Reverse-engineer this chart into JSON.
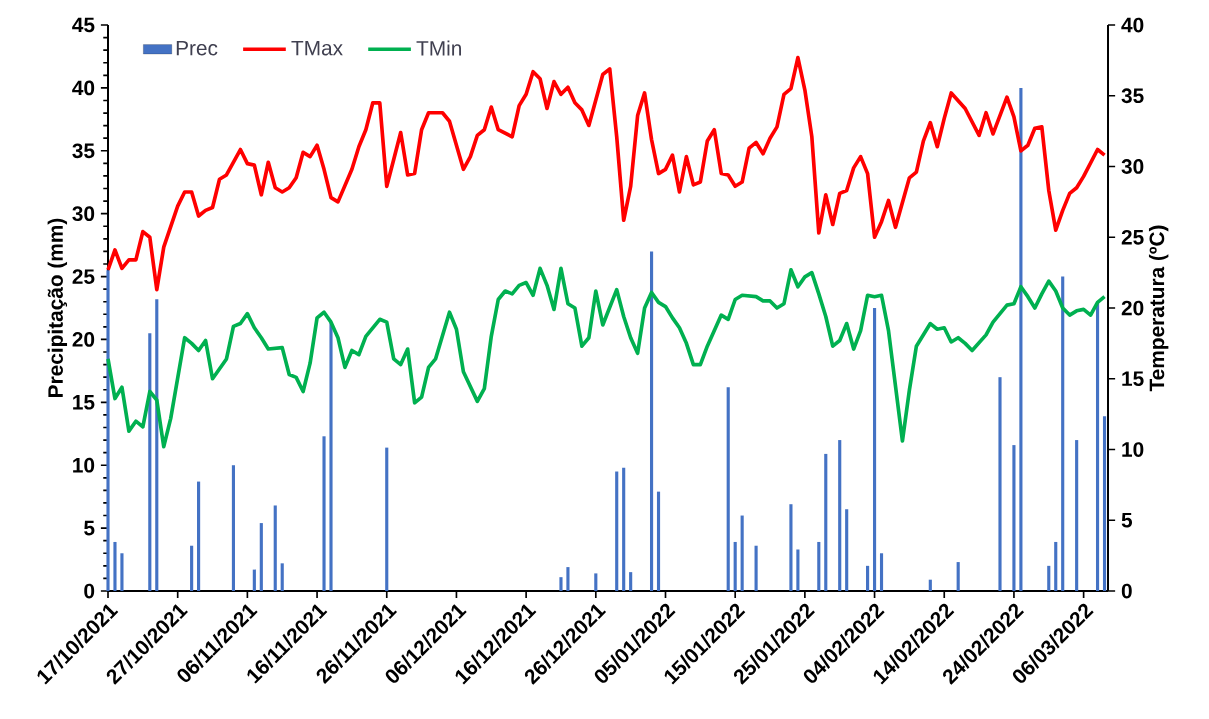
{
  "chart_data": {
    "type": "bar",
    "ylabel": "Precipitação (mm)",
    "y2label": "Temperatura (ºC)",
    "xlim": [
      "2021-10-17",
      "2022-03-09T12:00"
    ],
    "xticks": [
      {
        "value": "2021-10-17",
        "label": "17/10/2021"
      },
      {
        "value": "2021-10-27",
        "label": "27/10/2021"
      },
      {
        "value": "2021-11-06",
        "label": "06/11/2021"
      },
      {
        "value": "2021-11-16",
        "label": "16/11/2021"
      },
      {
        "value": "2021-11-26",
        "label": "26/11/2021"
      },
      {
        "value": "2021-12-06",
        "label": "06/12/2021"
      },
      {
        "value": "2021-12-16",
        "label": "16/12/2021"
      },
      {
        "value": "2021-12-26",
        "label": "26/12/2021"
      },
      {
        "value": "2022-01-05",
        "label": "05/01/2022"
      },
      {
        "value": "2022-01-15",
        "label": "15/01/2022"
      },
      {
        "value": "2022-01-25",
        "label": "25/01/2022"
      },
      {
        "value": "2022-02-04",
        "label": "04/02/2022"
      },
      {
        "value": "2022-02-14",
        "label": "14/02/2022"
      },
      {
        "value": "2022-02-24",
        "label": "24/02/2022"
      },
      {
        "value": "2022-03-06",
        "label": "06/03/2022"
      }
    ],
    "ylim": [
      0,
      45
    ],
    "yticks": [
      0,
      5,
      10,
      15,
      20,
      25,
      30,
      35,
      40,
      45
    ],
    "y2lim": [
      0,
      40
    ],
    "y2ticks": [
      0,
      5,
      10,
      15,
      20,
      25,
      30,
      35,
      40
    ],
    "legend": "top left",
    "grid": false,
    "series": [
      {
        "name": "Prec",
        "color": "#4472c4",
        "x": [
          "2021-10-17",
          "2021-10-18",
          "2021-10-19",
          "2021-10-23",
          "2021-10-24",
          "2021-10-29",
          "2021-10-30",
          "2021-11-04",
          "2021-11-07",
          "2021-11-08",
          "2021-11-10",
          "2021-11-11",
          "2021-11-17",
          "2021-11-18",
          "2021-11-26",
          "2021-12-21",
          "2021-12-22",
          "2021-12-26",
          "2021-12-29",
          "2021-12-30",
          "2021-12-31",
          "2022-01-03",
          "2022-01-04",
          "2022-01-14",
          "2022-01-15",
          "2022-01-16",
          "2022-01-18",
          "2022-01-23",
          "2022-01-24",
          "2022-01-27",
          "2022-01-28",
          "2022-01-30",
          "2022-01-31",
          "2022-02-03",
          "2022-02-04",
          "2022-02-05",
          "2022-02-12",
          "2022-02-16",
          "2022-02-22",
          "2022-02-24",
          "2022-02-25",
          "2022-03-01",
          "2022-03-02",
          "2022-03-03",
          "2022-03-05",
          "2022-03-08",
          "2022-03-09"
        ],
        "values": [
          25.5,
          3.9,
          3.0,
          20.5,
          23.2,
          3.6,
          8.7,
          10.0,
          1.7,
          5.4,
          6.8,
          2.2,
          12.3,
          21.3,
          11.4,
          1.1,
          1.9,
          1.4,
          9.5,
          9.8,
          1.5,
          27.0,
          7.9,
          16.2,
          3.9,
          6.0,
          3.6,
          6.9,
          3.3,
          3.9,
          10.9,
          12.0,
          6.5,
          2.0,
          22.5,
          3.0,
          0.9,
          2.3,
          17.0,
          11.6,
          40.0,
          2.0,
          3.9,
          25.0,
          12.0,
          23.0,
          13.9
        ]
      },
      {
        "name": "TMax",
        "type": "line",
        "axis": "y2",
        "color": "#ff0000",
        "x": [
          "2021-10-17",
          "2021-10-18",
          "2021-10-19",
          "2021-10-20",
          "2021-10-21",
          "2021-10-22",
          "2021-10-23",
          "2021-10-24",
          "2021-10-25",
          "2021-10-27",
          "2021-10-28",
          "2021-10-29",
          "2021-10-30",
          "2021-10-31",
          "2021-11-01",
          "2021-11-02",
          "2021-11-03",
          "2021-11-05",
          "2021-11-06",
          "2021-11-07",
          "2021-11-08",
          "2021-11-09",
          "2021-11-10",
          "2021-11-11",
          "2021-11-12",
          "2021-11-13",
          "2021-11-14",
          "2021-11-15",
          "2021-11-16",
          "2021-11-17",
          "2021-11-18",
          "2021-11-19",
          "2021-11-21",
          "2021-11-22",
          "2021-11-23",
          "2021-11-24",
          "2021-11-25",
          "2021-11-26",
          "2021-11-27",
          "2021-11-28",
          "2021-11-29",
          "2021-11-30",
          "2021-12-01",
          "2021-12-02",
          "2021-12-04",
          "2021-12-05",
          "2021-12-07",
          "2021-12-08",
          "2021-12-09",
          "2021-12-10",
          "2021-12-11",
          "2021-12-12",
          "2021-12-14",
          "2021-12-15",
          "2021-12-16",
          "2021-12-17",
          "2021-12-18",
          "2021-12-19",
          "2021-12-20",
          "2021-12-21",
          "2021-12-22",
          "2021-12-23",
          "2021-12-24",
          "2021-12-25",
          "2021-12-26",
          "2021-12-27",
          "2021-12-28",
          "2021-12-29",
          "2021-12-30",
          "2021-12-31",
          "2022-01-01",
          "2022-01-02",
          "2022-01-03",
          "2022-01-04",
          "2022-01-05",
          "2022-01-06",
          "2022-01-07",
          "2022-01-08",
          "2022-01-09",
          "2022-01-10",
          "2022-01-11",
          "2022-01-12",
          "2022-01-13",
          "2022-01-14",
          "2022-01-15",
          "2022-01-16",
          "2022-01-17",
          "2022-01-18",
          "2022-01-19",
          "2022-01-20",
          "2022-01-21",
          "2022-01-22",
          "2022-01-23",
          "2022-01-24",
          "2022-01-25",
          "2022-01-26",
          "2022-01-27",
          "2022-01-28",
          "2022-01-29",
          "2022-01-30",
          "2022-01-31",
          "2022-02-01",
          "2022-02-02",
          "2022-02-03",
          "2022-02-04",
          "2022-02-05",
          "2022-02-06",
          "2022-02-07",
          "2022-02-09",
          "2022-02-10",
          "2022-02-11",
          "2022-02-12",
          "2022-02-13",
          "2022-02-14",
          "2022-02-15",
          "2022-02-17",
          "2022-02-19",
          "2022-02-20",
          "2022-02-21",
          "2022-02-23",
          "2022-02-24",
          "2022-02-25",
          "2022-02-26",
          "2022-02-27",
          "2022-02-28",
          "2022-03-01",
          "2022-03-02",
          "2022-03-03",
          "2022-03-04",
          "2022-03-05",
          "2022-03-06",
          "2022-03-08",
          "2022-03-09"
        ],
        "values": [
          22.7,
          24.1,
          22.8,
          23.4,
          23.4,
          25.4,
          25.0,
          21.3,
          24.3,
          27.2,
          28.2,
          28.2,
          26.5,
          26.9,
          27.1,
          29.1,
          29.4,
          31.2,
          30.2,
          30.1,
          28.0,
          30.3,
          28.5,
          28.2,
          28.5,
          29.2,
          31.0,
          30.7,
          31.5,
          29.8,
          27.8,
          27.5,
          29.8,
          31.4,
          32.6,
          34.5,
          34.5,
          28.6,
          30.5,
          32.4,
          29.4,
          29.5,
          32.6,
          33.8,
          33.8,
          33.2,
          29.8,
          30.7,
          32.2,
          32.6,
          34.2,
          32.6,
          32.1,
          34.3,
          35.1,
          36.7,
          36.2,
          34.1,
          36.0,
          35.1,
          35.6,
          34.5,
          34.0,
          32.9,
          34.7,
          36.5,
          36.9,
          32.1,
          26.2,
          28.6,
          33.6,
          35.2,
          31.9,
          29.5,
          29.8,
          30.8,
          28.2,
          30.7,
          28.7,
          28.9,
          31.8,
          32.6,
          29.5,
          29.4,
          28.6,
          28.9,
          31.3,
          31.7,
          30.9,
          32.0,
          32.8,
          35.1,
          35.5,
          37.7,
          35.4,
          32.1,
          25.3,
          28.0,
          25.9,
          28.1,
          28.3,
          29.9,
          30.7,
          29.5,
          25.0,
          26.1,
          27.6,
          25.7,
          29.2,
          29.6,
          31.8,
          33.1,
          31.4,
          33.4,
          35.2,
          34.1,
          32.2,
          33.8,
          32.3,
          34.9,
          33.5,
          31.1,
          31.5,
          32.7,
          32.8,
          28.3,
          25.5,
          26.9,
          28.1,
          28.5,
          29.3,
          31.2,
          30.8
        ]
      },
      {
        "name": "TMin",
        "type": "line",
        "axis": "y2",
        "color": "#00b050",
        "x": [
          "2021-10-17",
          "2021-10-18",
          "2021-10-19",
          "2021-10-20",
          "2021-10-21",
          "2021-10-22",
          "2021-10-23",
          "2021-10-24",
          "2021-10-25",
          "2021-10-26",
          "2021-10-28",
          "2021-10-29",
          "2021-10-30",
          "2021-10-31",
          "2021-11-01",
          "2021-11-03",
          "2021-11-04",
          "2021-11-05",
          "2021-11-06",
          "2021-11-07",
          "2021-11-08",
          "2021-11-09",
          "2021-11-11",
          "2021-11-12",
          "2021-11-13",
          "2021-11-14",
          "2021-11-15",
          "2021-11-16",
          "2021-11-17",
          "2021-11-18",
          "2021-11-19",
          "2021-11-20",
          "2021-11-21",
          "2021-11-22",
          "2021-11-23",
          "2021-11-25",
          "2021-11-26",
          "2021-11-27",
          "2021-11-28",
          "2021-11-29",
          "2021-11-30",
          "2021-12-01",
          "2021-12-02",
          "2021-12-03",
          "2021-12-05",
          "2021-12-06",
          "2021-12-07",
          "2021-12-09",
          "2021-12-10",
          "2021-12-11",
          "2021-12-12",
          "2021-12-13",
          "2021-12-14",
          "2021-12-15",
          "2021-12-16",
          "2021-12-17",
          "2021-12-18",
          "2021-12-19",
          "2021-12-20",
          "2021-12-21",
          "2021-12-22",
          "2021-12-23",
          "2021-12-24",
          "2021-12-25",
          "2021-12-26",
          "2021-12-27",
          "2021-12-29",
          "2021-12-30",
          "2021-12-31",
          "2022-01-01",
          "2022-01-02",
          "2022-01-03",
          "2022-01-04",
          "2022-01-05",
          "2022-01-06",
          "2022-01-07",
          "2022-01-08",
          "2022-01-09",
          "2022-01-10",
          "2022-01-11",
          "2022-01-13",
          "2022-01-14",
          "2022-01-15",
          "2022-01-16",
          "2022-01-18",
          "2022-01-19",
          "2022-01-20",
          "2022-01-21",
          "2022-01-22",
          "2022-01-23",
          "2022-01-24",
          "2022-01-25",
          "2022-01-26",
          "2022-01-27",
          "2022-01-28",
          "2022-01-29",
          "2022-01-30",
          "2022-01-31",
          "2022-02-01",
          "2022-02-02",
          "2022-02-03",
          "2022-02-04",
          "2022-02-05",
          "2022-02-06",
          "2022-02-08",
          "2022-02-09",
          "2022-02-10",
          "2022-02-12",
          "2022-02-13",
          "2022-02-14",
          "2022-02-15",
          "2022-02-16",
          "2022-02-17",
          "2022-02-18",
          "2022-02-20",
          "2022-02-21",
          "2022-02-23",
          "2022-02-24",
          "2022-02-25",
          "2022-02-26",
          "2022-02-27",
          "2022-02-28",
          "2022-03-01",
          "2022-03-02",
          "2022-03-03",
          "2022-03-04",
          "2022-03-05",
          "2022-03-06",
          "2022-03-07",
          "2022-03-08",
          "2022-03-09"
        ],
        "values": [
          16.4,
          13.6,
          14.4,
          11.3,
          12.0,
          11.6,
          14.1,
          13.5,
          10.2,
          12.2,
          17.9,
          17.5,
          17.0,
          17.7,
          15.0,
          16.4,
          18.7,
          18.9,
          19.6,
          18.6,
          17.9,
          17.1,
          17.2,
          15.3,
          15.1,
          14.1,
          16.1,
          19.3,
          19.7,
          19.0,
          17.9,
          15.8,
          17.0,
          16.7,
          18.0,
          19.2,
          19.0,
          16.4,
          16.0,
          17.1,
          13.3,
          13.7,
          15.8,
          16.4,
          19.7,
          18.5,
          15.5,
          13.4,
          14.3,
          18.0,
          20.6,
          21.2,
          21.0,
          21.6,
          21.8,
          20.9,
          22.8,
          21.6,
          19.9,
          22.8,
          20.3,
          20.0,
          17.3,
          17.9,
          21.2,
          18.8,
          21.3,
          19.4,
          17.9,
          16.8,
          20.0,
          21.1,
          20.4,
          20.1,
          19.3,
          18.6,
          17.5,
          16.0,
          16.0,
          17.3,
          19.5,
          19.2,
          20.6,
          20.9,
          20.8,
          20.5,
          20.5,
          20.0,
          20.3,
          22.7,
          21.5,
          22.2,
          22.5,
          21.0,
          19.4,
          17.3,
          17.7,
          18.9,
          17.1,
          18.4,
          20.9,
          20.8,
          20.9,
          18.4,
          10.6,
          14.2,
          17.3,
          18.9,
          18.5,
          18.6,
          17.6,
          17.9,
          17.5,
          17.0,
          18.1,
          19.0,
          20.2,
          20.3,
          21.5,
          20.8,
          20.0,
          21.0,
          21.9,
          21.2,
          20.0,
          19.5,
          19.8,
          19.9,
          19.5,
          20.4,
          20.8
        ]
      }
    ]
  }
}
